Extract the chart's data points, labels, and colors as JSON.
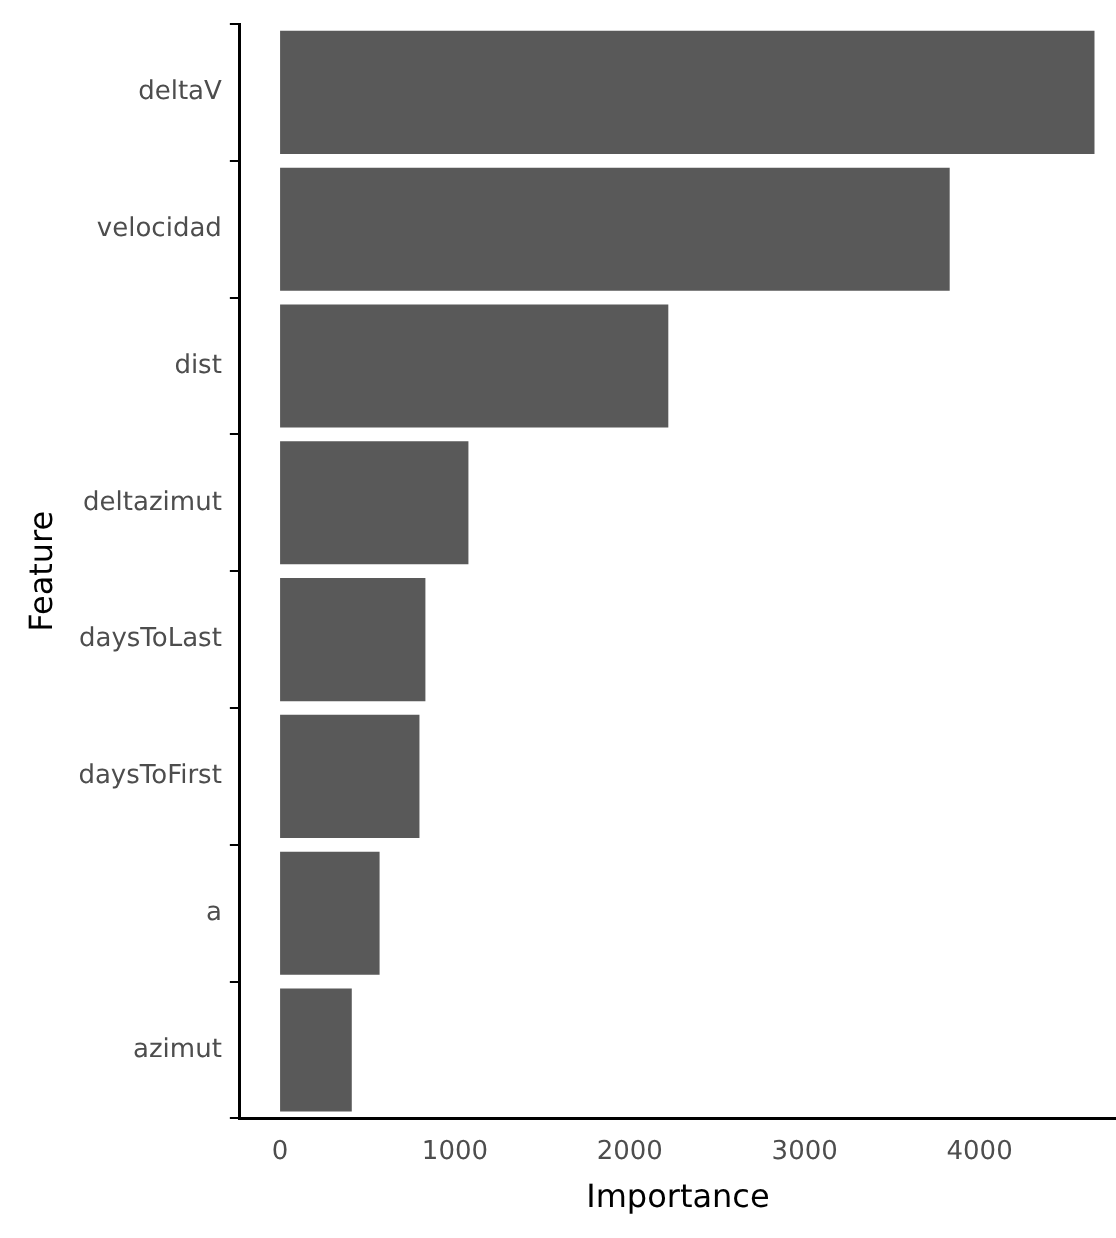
{
  "chart_data": {
    "type": "bar",
    "orientation": "horizontal",
    "xlabel": "Importance",
    "ylabel": "Feature",
    "categories": [
      "deltaV",
      "velocidad",
      "dist",
      "deltazimut",
      "daysToLast",
      "daysToFirst",
      "a",
      "azimut"
    ],
    "values": [
      4657,
      3829,
      2220,
      1077,
      831,
      797,
      569,
      410
    ],
    "color": "#595959",
    "xlim": [
      -230,
      4780
    ],
    "xticks": [
      0,
      1000,
      2000,
      3000,
      4000
    ],
    "grid": false,
    "legend": false
  }
}
